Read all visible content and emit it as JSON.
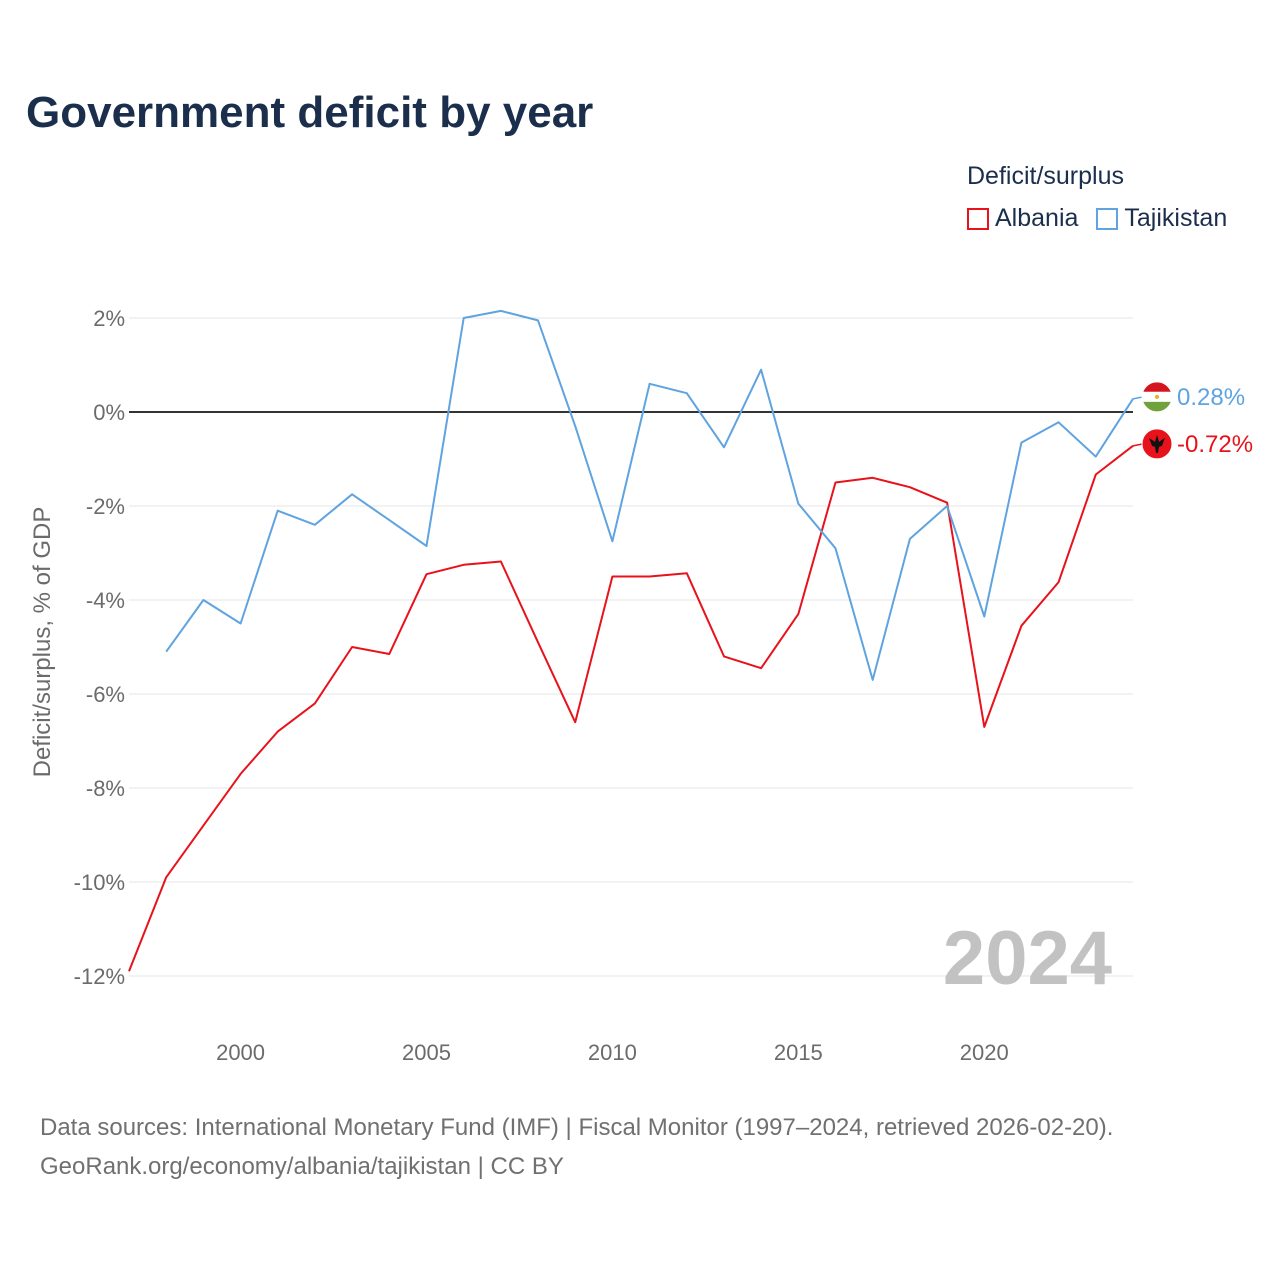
{
  "title": "Government deficit by year",
  "legend": {
    "title": "Deficit/surplus",
    "items": [
      {
        "name": "Albania",
        "color": "#e8121b"
      },
      {
        "name": "Tajikistan",
        "color": "#5fa3e0"
      }
    ]
  },
  "source_line1": "Data sources: International Monetary Fund (IMF) | Fiscal Monitor (1997–2024, retrieved 2026-02-20).",
  "source_line2": "GeoRank.org/economy/albania/tajikistan | CC BY",
  "chart_data": {
    "type": "line",
    "title": "Government deficit by year",
    "xlabel": "",
    "ylabel": "Deficit/surplus, % of GDP",
    "xlim": [
      1997,
      2024
    ],
    "ylim": [
      -13,
      3.5
    ],
    "y_ticks": [
      2,
      0,
      -2,
      -4,
      -6,
      -8,
      -10,
      -12
    ],
    "y_tick_labels": [
      "2%",
      "0%",
      "-2%",
      "-4%",
      "-6%",
      "-8%",
      "-10%",
      "-12%"
    ],
    "x_ticks": [
      2000,
      2005,
      2010,
      2015,
      2020
    ],
    "x_tick_labels": [
      "2000",
      "2005",
      "2010",
      "2015",
      "2020"
    ],
    "watermark_year": "2024",
    "series": [
      {
        "name": "Albania",
        "color": "#e8121b",
        "end_label": "-0.72%",
        "x": [
          1997,
          1998,
          1999,
          2000,
          2001,
          2002,
          2003,
          2004,
          2005,
          2006,
          2007,
          2008,
          2009,
          2010,
          2011,
          2012,
          2013,
          2014,
          2015,
          2016,
          2017,
          2018,
          2019,
          2020,
          2021,
          2022,
          2023,
          2024
        ],
        "values": [
          -11.9,
          -9.9,
          -8.8,
          -7.7,
          -6.8,
          -6.2,
          -5.0,
          -5.15,
          -3.45,
          -3.25,
          -3.18,
          -4.9,
          -6.6,
          -3.5,
          -3.5,
          -3.43,
          -5.2,
          -5.45,
          -4.3,
          -1.5,
          -1.4,
          -1.6,
          -1.93,
          -6.7,
          -4.55,
          -3.62,
          -1.33,
          -0.72
        ]
      },
      {
        "name": "Tajikistan",
        "color": "#5fa3e0",
        "end_label": "0.28%",
        "x": [
          1998,
          1999,
          2000,
          2001,
          2002,
          2003,
          2004,
          2005,
          2006,
          2007,
          2008,
          2009,
          2010,
          2011,
          2012,
          2013,
          2014,
          2015,
          2016,
          2017,
          2018,
          2019,
          2020,
          2021,
          2022,
          2023,
          2024
        ],
        "values": [
          -5.1,
          -4.0,
          -4.5,
          -2.1,
          -2.4,
          -1.75,
          -2.3,
          -2.85,
          2.0,
          2.15,
          1.95,
          -0.3,
          -2.75,
          0.6,
          0.4,
          -0.75,
          0.9,
          -1.95,
          -2.9,
          -5.7,
          -2.7,
          -2.0,
          -4.35,
          -0.65,
          -0.22,
          -0.95,
          0.28
        ]
      }
    ]
  }
}
